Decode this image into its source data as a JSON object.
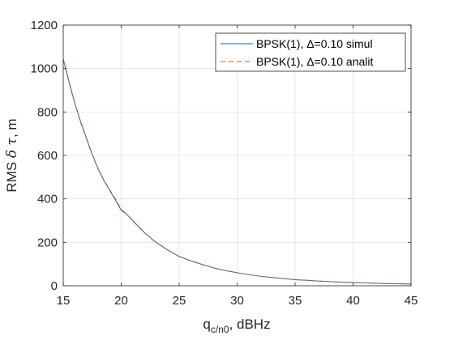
{
  "chart_data": {
    "type": "line",
    "xlabel": "q",
    "xlabel_sub": "c/n0",
    "xlabel_suffix": ", dBHz",
    "ylabel_prefix": "RMS ",
    "ylabel_delta": "δ",
    "ylabel_tau": " τ",
    "ylabel_suffix": ", m",
    "xlim": [
      15,
      45
    ],
    "ylim": [
      0,
      1200
    ],
    "xticks": [
      15,
      20,
      25,
      30,
      35,
      40,
      45
    ],
    "yticks": [
      0,
      200,
      400,
      600,
      800,
      1000,
      1200
    ],
    "grid": true,
    "legend_position": "top-right",
    "series": [
      {
        "name": "BPSK(1), Δ=0.10 simul",
        "color": "#0072BD",
        "style": "solid",
        "x": [
          15,
          15.5,
          16,
          16.5,
          17,
          17.5,
          18,
          18.5,
          19,
          19.5,
          20,
          20.5,
          21,
          22,
          23,
          24,
          25,
          26,
          27,
          28,
          29,
          30,
          31,
          32,
          33,
          34,
          35,
          36,
          37,
          38,
          39,
          40,
          41,
          42,
          43,
          44,
          45
        ],
        "y": [
          1045,
          940,
          840,
          755,
          680,
          605,
          540,
          485,
          440,
          395,
          348,
          328,
          300,
          245,
          200,
          165,
          135,
          115,
          98,
          82,
          70,
          60,
          51,
          44,
          38,
          33,
          28,
          25,
          22,
          19,
          17,
          15,
          13,
          11.5,
          10,
          9,
          8
        ]
      },
      {
        "name": "BPSK(1), Δ=0.10 analit",
        "color": "#D95319",
        "style": "dashed",
        "x": [
          15,
          15.5,
          16,
          16.5,
          17,
          17.5,
          18,
          18.5,
          19,
          19.5,
          20,
          20.5,
          21,
          22,
          23,
          24,
          25,
          26,
          27,
          28,
          29,
          30,
          31,
          32,
          33,
          34,
          35,
          36,
          37,
          38,
          39,
          40,
          41,
          42,
          43,
          44,
          45
        ],
        "y": [
          1040,
          935,
          838,
          752,
          676,
          603,
          538,
          487,
          443,
          400,
          352,
          328,
          298,
          244,
          199,
          164,
          134,
          114,
          97,
          82,
          70,
          60,
          51,
          44,
          38,
          33,
          28,
          25,
          22,
          19,
          17,
          15,
          13,
          11.5,
          10,
          9,
          8
        ]
      }
    ]
  }
}
